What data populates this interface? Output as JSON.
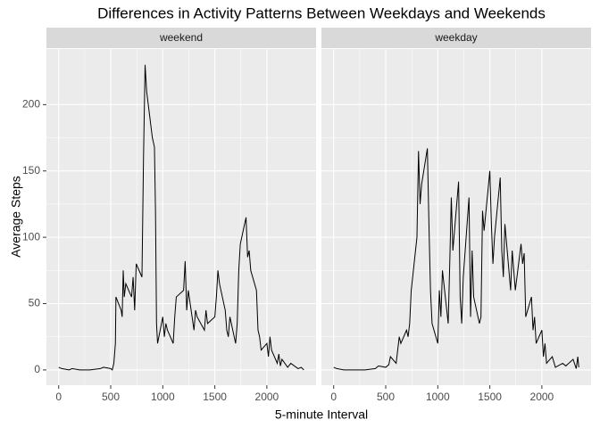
{
  "chart_data": {
    "type": "line",
    "title": "Differences in Activity Patterns Between Weekdays and Weekends",
    "x_label": "5-minute Interval",
    "y_label": "Average Steps",
    "facet": true,
    "grid": true,
    "xlim": [
      -117.75,
      2472.75
    ],
    "ylim": [
      -11.5,
      241.9
    ],
    "xticks": [
      0,
      500,
      1000,
      1500,
      2000
    ],
    "yticks": [
      0,
      50,
      100,
      150,
      200
    ],
    "series": [
      {
        "name": "weekend",
        "color": "#000000",
        "x": [
          0,
          30,
          100,
          130,
          200,
          300,
          400,
          430,
          500,
          515,
          530,
          545,
          550,
          600,
          610,
          620,
          630,
          645,
          700,
          715,
          730,
          745,
          800,
          815,
          830,
          845,
          900,
          920,
          930,
          940,
          950,
          1000,
          1015,
          1030,
          1045,
          1100,
          1115,
          1130,
          1200,
          1215,
          1230,
          1245,
          1300,
          1315,
          1330,
          1400,
          1415,
          1430,
          1500,
          1515,
          1530,
          1545,
          1600,
          1615,
          1630,
          1645,
          1700,
          1715,
          1730,
          1745,
          1800,
          1815,
          1830,
          1845,
          1900,
          1915,
          1930,
          1945,
          2000,
          2015,
          2030,
          2045,
          2100,
          2115,
          2130,
          2145,
          2200,
          2230,
          2300,
          2330,
          2355
        ],
        "values": [
          2,
          1,
          0,
          1,
          0,
          0,
          1,
          2,
          1,
          0,
          5,
          20,
          55,
          45,
          40,
          75,
          55,
          65,
          55,
          70,
          45,
          80,
          70,
          160,
          230,
          210,
          175,
          168,
          120,
          35,
          20,
          40,
          25,
          35,
          30,
          20,
          40,
          55,
          60,
          82,
          45,
          60,
          30,
          45,
          40,
          30,
          45,
          35,
          40,
          55,
          75,
          65,
          45,
          30,
          25,
          40,
          20,
          35,
          75,
          95,
          115,
          85,
          90,
          75,
          60,
          30,
          25,
          15,
          20,
          10,
          25,
          15,
          5,
          12,
          3,
          8,
          2,
          5,
          1,
          2,
          0
        ]
      },
      {
        "name": "weekday",
        "color": "#000000",
        "x": [
          0,
          30,
          100,
          200,
          300,
          400,
          430,
          500,
          530,
          545,
          600,
          615,
          630,
          645,
          700,
          715,
          730,
          745,
          800,
          815,
          830,
          845,
          900,
          915,
          930,
          945,
          1000,
          1015,
          1030,
          1045,
          1100,
          1115,
          1130,
          1145,
          1200,
          1215,
          1230,
          1245,
          1300,
          1315,
          1330,
          1345,
          1400,
          1415,
          1430,
          1445,
          1500,
          1515,
          1530,
          1545,
          1600,
          1615,
          1630,
          1645,
          1700,
          1715,
          1730,
          1745,
          1800,
          1815,
          1830,
          1845,
          1900,
          1915,
          1930,
          1945,
          2000,
          2015,
          2030,
          2045,
          2100,
          2130,
          2200,
          2230,
          2300,
          2330,
          2345,
          2355
        ],
        "values": [
          2,
          1,
          0,
          0,
          0,
          1,
          3,
          2,
          4,
          10,
          5,
          15,
          25,
          20,
          30,
          25,
          35,
          60,
          100,
          165,
          125,
          140,
          167,
          110,
          60,
          35,
          20,
          60,
          40,
          75,
          35,
          80,
          130,
          90,
          142,
          55,
          35,
          70,
          130,
          40,
          90,
          55,
          35,
          40,
          120,
          105,
          150,
          110,
          80,
          100,
          145,
          90,
          70,
          110,
          60,
          90,
          75,
          60,
          95,
          80,
          88,
          40,
          55,
          30,
          40,
          20,
          30,
          10,
          20,
          5,
          10,
          2,
          5,
          3,
          8,
          1,
          10,
          2
        ]
      }
    ]
  }
}
